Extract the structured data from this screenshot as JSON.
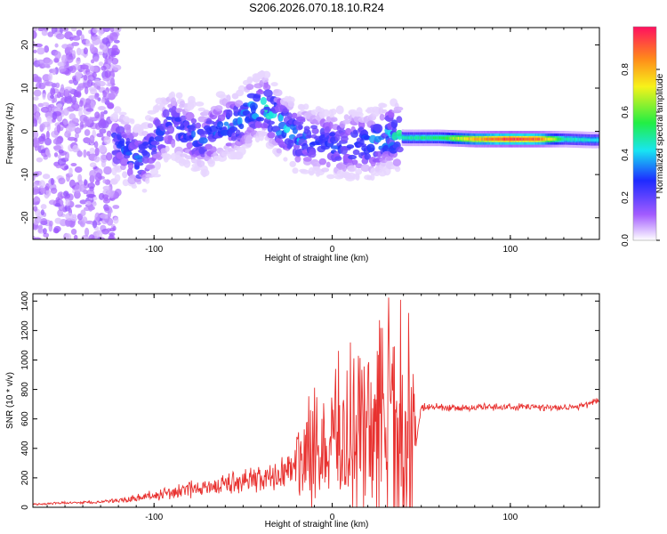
{
  "figure_title": "S206.2026.070.18.10.R24",
  "chart_data": [
    {
      "type": "heatmap",
      "title": "",
      "xlabel": "Height of straight line (km)",
      "ylabel": "Frequency (Hz)",
      "xlim": [
        -168,
        150
      ],
      "ylim": [
        -25,
        24
      ],
      "xticks": [
        -100,
        0,
        100
      ],
      "yticks": [
        -20,
        -10,
        0,
        10,
        20
      ],
      "colorbar": {
        "label": "Normalized spectral amplitude",
        "range": [
          0,
          1
        ],
        "ticks": [
          "0.0",
          "0.2",
          "0.4",
          "0.6",
          "0.8"
        ],
        "colormap": "white-purple-blue-cyan-green-yellow-red"
      },
      "ridge": [
        {
          "x": -118,
          "y": -3,
          "amp": 0.3
        },
        {
          "x": -108,
          "y": -7,
          "amp": 0.35
        },
        {
          "x": -100,
          "y": -3,
          "amp": 0.3
        },
        {
          "x": -92,
          "y": 2,
          "amp": 0.3
        },
        {
          "x": -82,
          "y": 0,
          "amp": 0.3
        },
        {
          "x": -72,
          "y": -2,
          "amp": 0.3
        },
        {
          "x": -62,
          "y": 1,
          "amp": 0.32
        },
        {
          "x": -52,
          "y": 2,
          "amp": 0.35
        },
        {
          "x": -45,
          "y": 5,
          "amp": 0.4
        },
        {
          "x": -38,
          "y": 6,
          "amp": 0.45
        },
        {
          "x": -30,
          "y": 2,
          "amp": 0.45
        },
        {
          "x": -22,
          "y": -1,
          "amp": 0.4
        },
        {
          "x": -12,
          "y": -2,
          "amp": 0.35
        },
        {
          "x": -2,
          "y": -3,
          "amp": 0.3
        },
        {
          "x": 10,
          "y": -3,
          "amp": 0.35
        },
        {
          "x": 22,
          "y": -3,
          "amp": 0.35
        },
        {
          "x": 32,
          "y": -1,
          "amp": 0.4
        },
        {
          "x": 40,
          "y": -1.5,
          "amp": 0.5
        },
        {
          "x": 60,
          "y": -1.5,
          "amp": 0.55
        },
        {
          "x": 80,
          "y": -1.8,
          "amp": 0.85
        },
        {
          "x": 100,
          "y": -1.8,
          "amp": 1.0
        },
        {
          "x": 115,
          "y": -1.8,
          "amp": 0.95
        },
        {
          "x": 130,
          "y": -1.8,
          "amp": 0.5
        },
        {
          "x": 145,
          "y": -2,
          "amp": 0.45
        }
      ]
    },
    {
      "type": "line",
      "title": "",
      "xlabel": "Height of straight line (km)",
      "ylabel": "SNR (10 * v/v)",
      "xlim": [
        -168,
        150
      ],
      "ylim": [
        0,
        1450
      ],
      "xticks": [
        -100,
        0,
        100
      ],
      "yticks": [
        0,
        200,
        400,
        600,
        800,
        1000,
        1200,
        1400
      ],
      "color": "#e8312f",
      "x": [
        -168,
        -150,
        -130,
        -110,
        -100,
        -90,
        -80,
        -70,
        -60,
        -50,
        -40,
        -30,
        -20,
        -10,
        0,
        10,
        20,
        30,
        40,
        47,
        50,
        60,
        70,
        80,
        90,
        100,
        110,
        120,
        130,
        140,
        150
      ],
      "y": [
        20,
        30,
        35,
        60,
        80,
        100,
        120,
        140,
        160,
        180,
        190,
        220,
        320,
        400,
        450,
        500,
        550,
        560,
        500,
        420,
        680,
        680,
        670,
        680,
        680,
        680,
        680,
        680,
        680,
        690,
        720
      ]
    }
  ]
}
